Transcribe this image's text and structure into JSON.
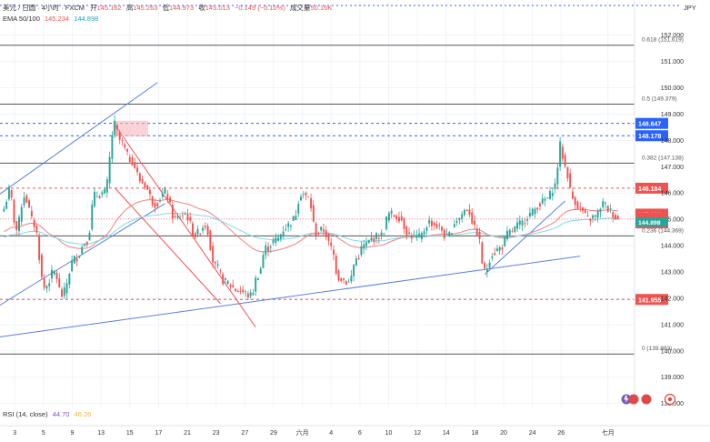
{
  "header": {
    "symbol_line": "美元 / 日圆 · 4小时 · FXCM",
    "o_label": "开",
    "o_value": "145.162",
    "h_label": "高",
    "h_value": "145.263",
    "l_label": "低",
    "l_value": "144.973",
    "c_label": "收",
    "c_value": "145.013",
    "change": "−0.149 (−0.10%)",
    "volume_label": "成交量",
    "volume_value": "50.16K",
    "ema_label": "EMA 50/100",
    "ema50_value": "145.234",
    "ema100_value": "144.898"
  },
  "currency": "JPY",
  "colors": {
    "up": "#26a69a",
    "down": "#ef5350",
    "ema50": "#f08080",
    "ema100": "#7fdbe8",
    "trendline": "#5b7fe0",
    "fib": "#555555",
    "blue_level": "#2962ff",
    "red_level": "#ef5350"
  },
  "chart_data": {
    "type": "candlestick",
    "symbol": "USDJPY",
    "y_axis": {
      "labels": [
        "152.000",
        "151.000",
        "150.000",
        "149.000",
        "148.000",
        "147.000",
        "146.000",
        "145.000",
        "144.000",
        "143.000",
        "142.000",
        "141.000",
        "140.000",
        "139.000",
        "138.000"
      ],
      "range": [
        137.85,
        152.3
      ]
    },
    "x_axis": {
      "labels": [
        {
          "text": "3",
          "idx": 3
        },
        {
          "text": "5",
          "idx": 11
        },
        {
          "text": "9",
          "idx": 19
        },
        {
          "text": "13",
          "idx": 27
        },
        {
          "text": "15",
          "idx": 35
        },
        {
          "text": "17",
          "idx": 43
        },
        {
          "text": "21",
          "idx": 51
        },
        {
          "text": "23",
          "idx": 59
        },
        {
          "text": "27",
          "idx": 67
        },
        {
          "text": "29",
          "idx": 75
        },
        {
          "text": "六月",
          "idx": 83
        },
        {
          "text": "4",
          "idx": 91
        },
        {
          "text": "6",
          "idx": 99
        },
        {
          "text": "10",
          "idx": 107
        },
        {
          "text": "12",
          "idx": 115
        },
        {
          "text": "14",
          "idx": 123
        },
        {
          "text": "18",
          "idx": 131
        },
        {
          "text": "20",
          "idx": 139
        },
        {
          "text": "24",
          "idx": 147
        },
        {
          "text": "26",
          "idx": 155
        },
        {
          "text": "七月",
          "idx": 168
        }
      ],
      "bar_count": 175
    },
    "fib_levels": [
      {
        "label": "0.618 (151.619)",
        "price": 151.619
      },
      {
        "label": "0.5 (149.379)",
        "price": 149.379
      },
      {
        "label": "0.382 (147.138)",
        "price": 147.138
      },
      {
        "label": "0.236 (144.369)",
        "price": 144.369
      },
      {
        "label": "0 (139.883)",
        "price": 139.883
      }
    ],
    "price_levels": [
      {
        "label": "148.647",
        "price": 148.647,
        "color": "#2962ff"
      },
      {
        "label": "148.178",
        "price": 148.178,
        "color": "#2962ff"
      },
      {
        "label": "146.184",
        "price": 146.184,
        "color": "#ef5350"
      },
      {
        "label": "141.955",
        "price": 141.955,
        "color": "#ef5350"
      }
    ],
    "current_price_tags": [
      {
        "label": "145.234",
        "price": 145.234,
        "color": "#ef5350"
      },
      {
        "label": "USDJPY",
        "price": 145.1,
        "color": "#ef5350"
      },
      {
        "label": "145.013",
        "price": 145.013,
        "color": "#ef5350"
      },
      {
        "label": "01:35:56",
        "price": 144.83,
        "color": "#ef5350"
      },
      {
        "label": "144.898",
        "price": 144.898,
        "color": "#26a69a"
      }
    ],
    "pivots": [
      [
        0,
        145.4
      ],
      [
        2,
        146.1
      ],
      [
        5,
        144.6
      ],
      [
        8,
        145.9
      ],
      [
        12,
        144.8
      ],
      [
        16,
        142.4
      ],
      [
        20,
        143.0
      ],
      [
        23,
        142.1
      ],
      [
        28,
        143.5
      ],
      [
        33,
        144.2
      ],
      [
        36,
        145.9
      ],
      [
        40,
        146.0
      ],
      [
        44,
        148.6
      ],
      [
        46,
        148.0
      ],
      [
        50,
        147.3
      ],
      [
        55,
        146.4
      ],
      [
        60,
        145.6
      ],
      [
        64,
        146.0
      ],
      [
        68,
        145.0
      ],
      [
        72,
        145.2
      ],
      [
        76,
        144.4
      ],
      [
        80,
        144.8
      ],
      [
        84,
        143.2
      ],
      [
        88,
        142.6
      ],
      [
        93,
        142.3
      ],
      [
        98,
        142.1
      ],
      [
        101,
        142.9
      ],
      [
        104,
        143.9
      ],
      [
        108,
        144.2
      ],
      [
        112,
        144.7
      ],
      [
        115,
        145.0
      ],
      [
        118,
        146.0
      ],
      [
        121,
        145.8
      ],
      [
        124,
        144.5
      ],
      [
        127,
        144.6
      ],
      [
        130,
        143.9
      ],
      [
        133,
        142.8
      ],
      [
        137,
        142.6
      ],
      [
        140,
        143.5
      ],
      [
        143,
        144.0
      ],
      [
        147,
        144.3
      ],
      [
        150,
        144.4
      ],
      [
        153,
        145.2
      ],
      [
        157,
        145.1
      ],
      [
        161,
        144.4
      ],
      [
        165,
        144.3
      ],
      [
        169,
        144.9
      ],
      [
        173,
        144.7
      ],
      [
        176,
        144.3
      ],
      [
        180,
        145.0
      ],
      [
        184,
        145.4
      ],
      [
        188,
        144.5
      ],
      [
        191,
        143.0
      ],
      [
        194,
        143.7
      ],
      [
        197,
        143.9
      ],
      [
        201,
        144.5
      ],
      [
        205,
        144.8
      ],
      [
        209,
        145.2
      ],
      [
        213,
        145.6
      ],
      [
        216,
        145.8
      ],
      [
        219,
        146.3
      ],
      [
        221,
        147.8
      ],
      [
        223,
        147.0
      ],
      [
        226,
        145.8
      ],
      [
        229,
        145.4
      ],
      [
        232,
        145.0
      ],
      [
        235,
        145.1
      ],
      [
        238,
        145.6
      ],
      [
        241,
        145.3
      ],
      [
        244,
        145.0
      ]
    ]
  },
  "rsi": {
    "label": "RSI (14, close)",
    "value1": "44.70",
    "value2": "46.26"
  }
}
